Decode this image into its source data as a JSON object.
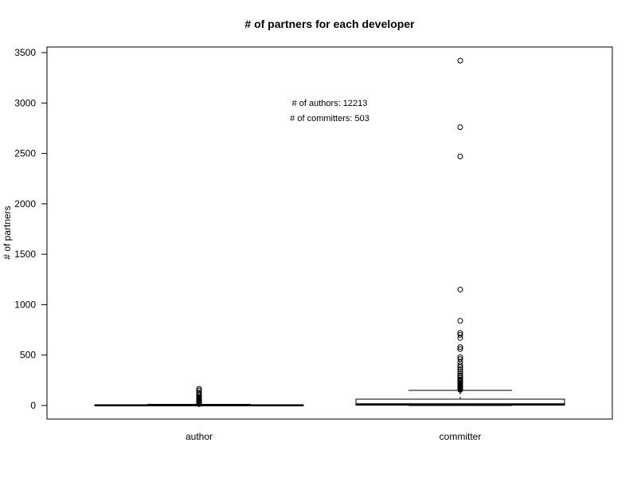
{
  "chart_data": {
    "type": "box",
    "title": "# of partners for each developer",
    "xlabel": "",
    "ylabel": "# of partners",
    "ylim": [
      -140,
      3560
    ],
    "yticks": [
      0,
      500,
      1000,
      1500,
      2000,
      2500,
      3000,
      3500
    ],
    "ytick_labels": [
      "0",
      "500",
      "1000",
      "1500",
      "2000",
      "2500",
      "3000",
      "3500"
    ],
    "categories": [
      "author",
      "committer"
    ],
    "boxes": [
      {
        "name": "author",
        "min": 0,
        "q1": 1,
        "median": 2,
        "q3": 5,
        "whisker_high": 12,
        "outliers": [
          14,
          20,
          26,
          32,
          38,
          45,
          52,
          60,
          68,
          76,
          85,
          100,
          115,
          130,
          150,
          165
        ]
      },
      {
        "name": "committer",
        "min": 0,
        "q1": 3,
        "median": 12,
        "q3": 63,
        "whisker_high": 150,
        "outliers": [
          155,
          160,
          165,
          170,
          175,
          180,
          185,
          190,
          195,
          200,
          210,
          220,
          230,
          240,
          250,
          260,
          275,
          290,
          300,
          320,
          340,
          360,
          380,
          400,
          430,
          460,
          480,
          560,
          580,
          670,
          700,
          720,
          840,
          1150,
          2470,
          2760,
          3420
        ]
      }
    ],
    "annotations": [
      "# of authors: 12213",
      "# of committers: 503"
    ],
    "grid": false,
    "legend": "none"
  }
}
